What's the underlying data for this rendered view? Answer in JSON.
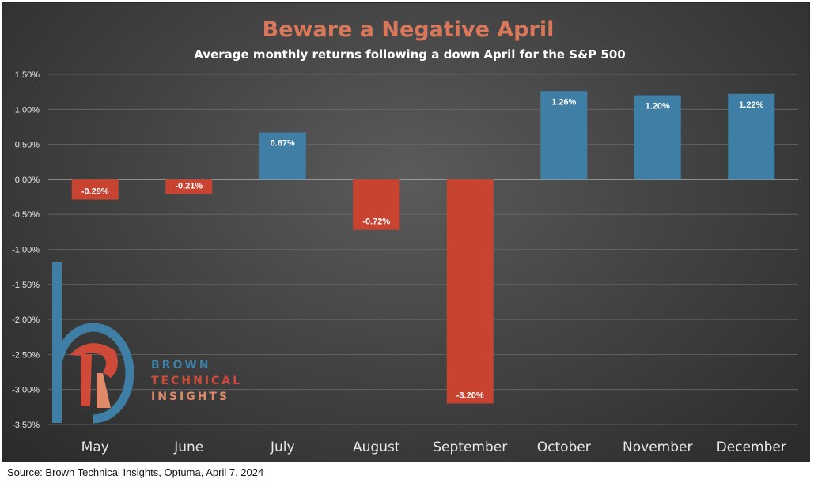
{
  "chart_data": {
    "type": "bar",
    "title": "Beware a Negative April",
    "subtitle": "Average monthly returns following a down April for the S&P 500",
    "categories": [
      "May",
      "June",
      "July",
      "August",
      "September",
      "October",
      "November",
      "December"
    ],
    "values": [
      -0.29,
      -0.21,
      0.67,
      -0.72,
      -3.2,
      1.26,
      1.2,
      1.22
    ],
    "data_labels": [
      "-0.29%",
      "-0.21%",
      "0.67%",
      "-0.72%",
      "-3.20%",
      "1.26%",
      "1.20%",
      "1.22%"
    ],
    "ylim": [
      -3.5,
      1.5
    ],
    "yticks": [
      1.5,
      1.0,
      0.5,
      0.0,
      -0.5,
      -1.0,
      -1.5,
      -2.0,
      -2.5,
      -3.0,
      -3.5
    ],
    "ytick_labels": [
      "1.50%",
      "1.00%",
      "0.50%",
      "0.00%",
      "-0.50%",
      "-1.00%",
      "-1.50%",
      "-2.00%",
      "-2.50%",
      "-3.00%",
      "-3.50%"
    ],
    "xlabel": "",
    "ylabel": "",
    "grid": true,
    "legend": "none",
    "colors": {
      "positive": "#3f7fa5",
      "negative": "#c94331",
      "title": "#d9775a",
      "subtitle": "#ffffff",
      "axis_text": "#e8e8e8"
    }
  },
  "logo": {
    "lines": [
      "BROWN",
      "TECHNICAL",
      "INSIGHTS"
    ],
    "colors": {
      "blue": "#3f7fa5",
      "red": "#d04a3a",
      "salmon": "#e08a6a"
    }
  },
  "source": "Source: Brown Technical Insights, Optuma, April 7, 2024"
}
